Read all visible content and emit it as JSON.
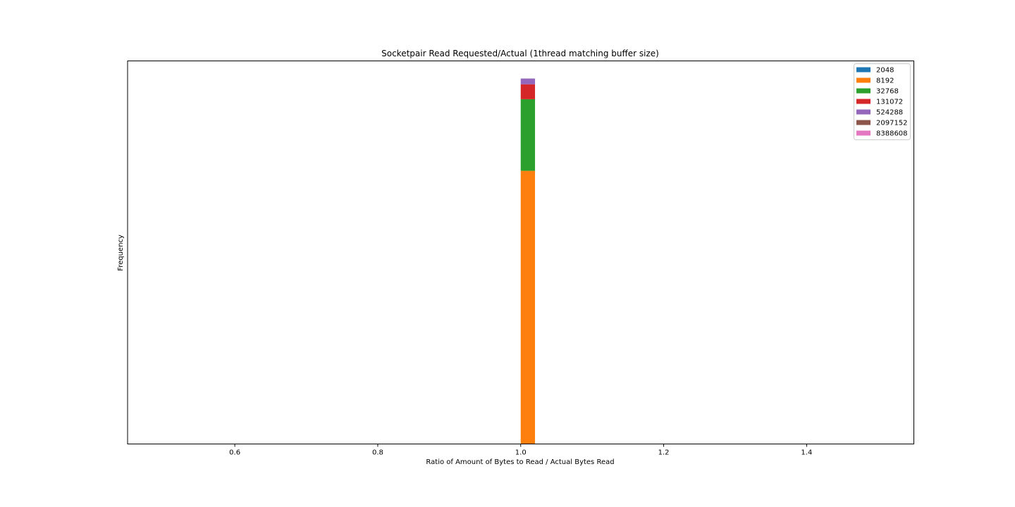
{
  "chart_data": {
    "type": "bar",
    "stacked": true,
    "title": "Socketpair Read Requested/Actual (1thread matching buffer size)",
    "xlabel": "Ratio of Amount of Bytes to Read / Actual Bytes Read",
    "ylabel": "Frequency",
    "xlim": [
      0.45,
      1.55
    ],
    "ylim": [
      0,
      1.0
    ],
    "xticks": [
      "0.6",
      "0.8",
      "1.0",
      "1.2",
      "1.4"
    ],
    "yticks_visible": false,
    "grid": false,
    "legend_position": "top-right",
    "bin": [
      1.0,
      1.02
    ],
    "series": [
      {
        "name": "2048",
        "color": "#1f77b4",
        "value": 0.0
      },
      {
        "name": "8192",
        "color": "#ff7f0e",
        "value": 0.713
      },
      {
        "name": "32768",
        "color": "#2ca02c",
        "value": 0.187
      },
      {
        "name": "131072",
        "color": "#d62728",
        "value": 0.039
      },
      {
        "name": "524288",
        "color": "#9467bd",
        "value": 0.015
      },
      {
        "name": "2097152",
        "color": "#8c564b",
        "value": 0.0
      },
      {
        "name": "8388608",
        "color": "#e377c2",
        "value": 0.0
      }
    ]
  }
}
